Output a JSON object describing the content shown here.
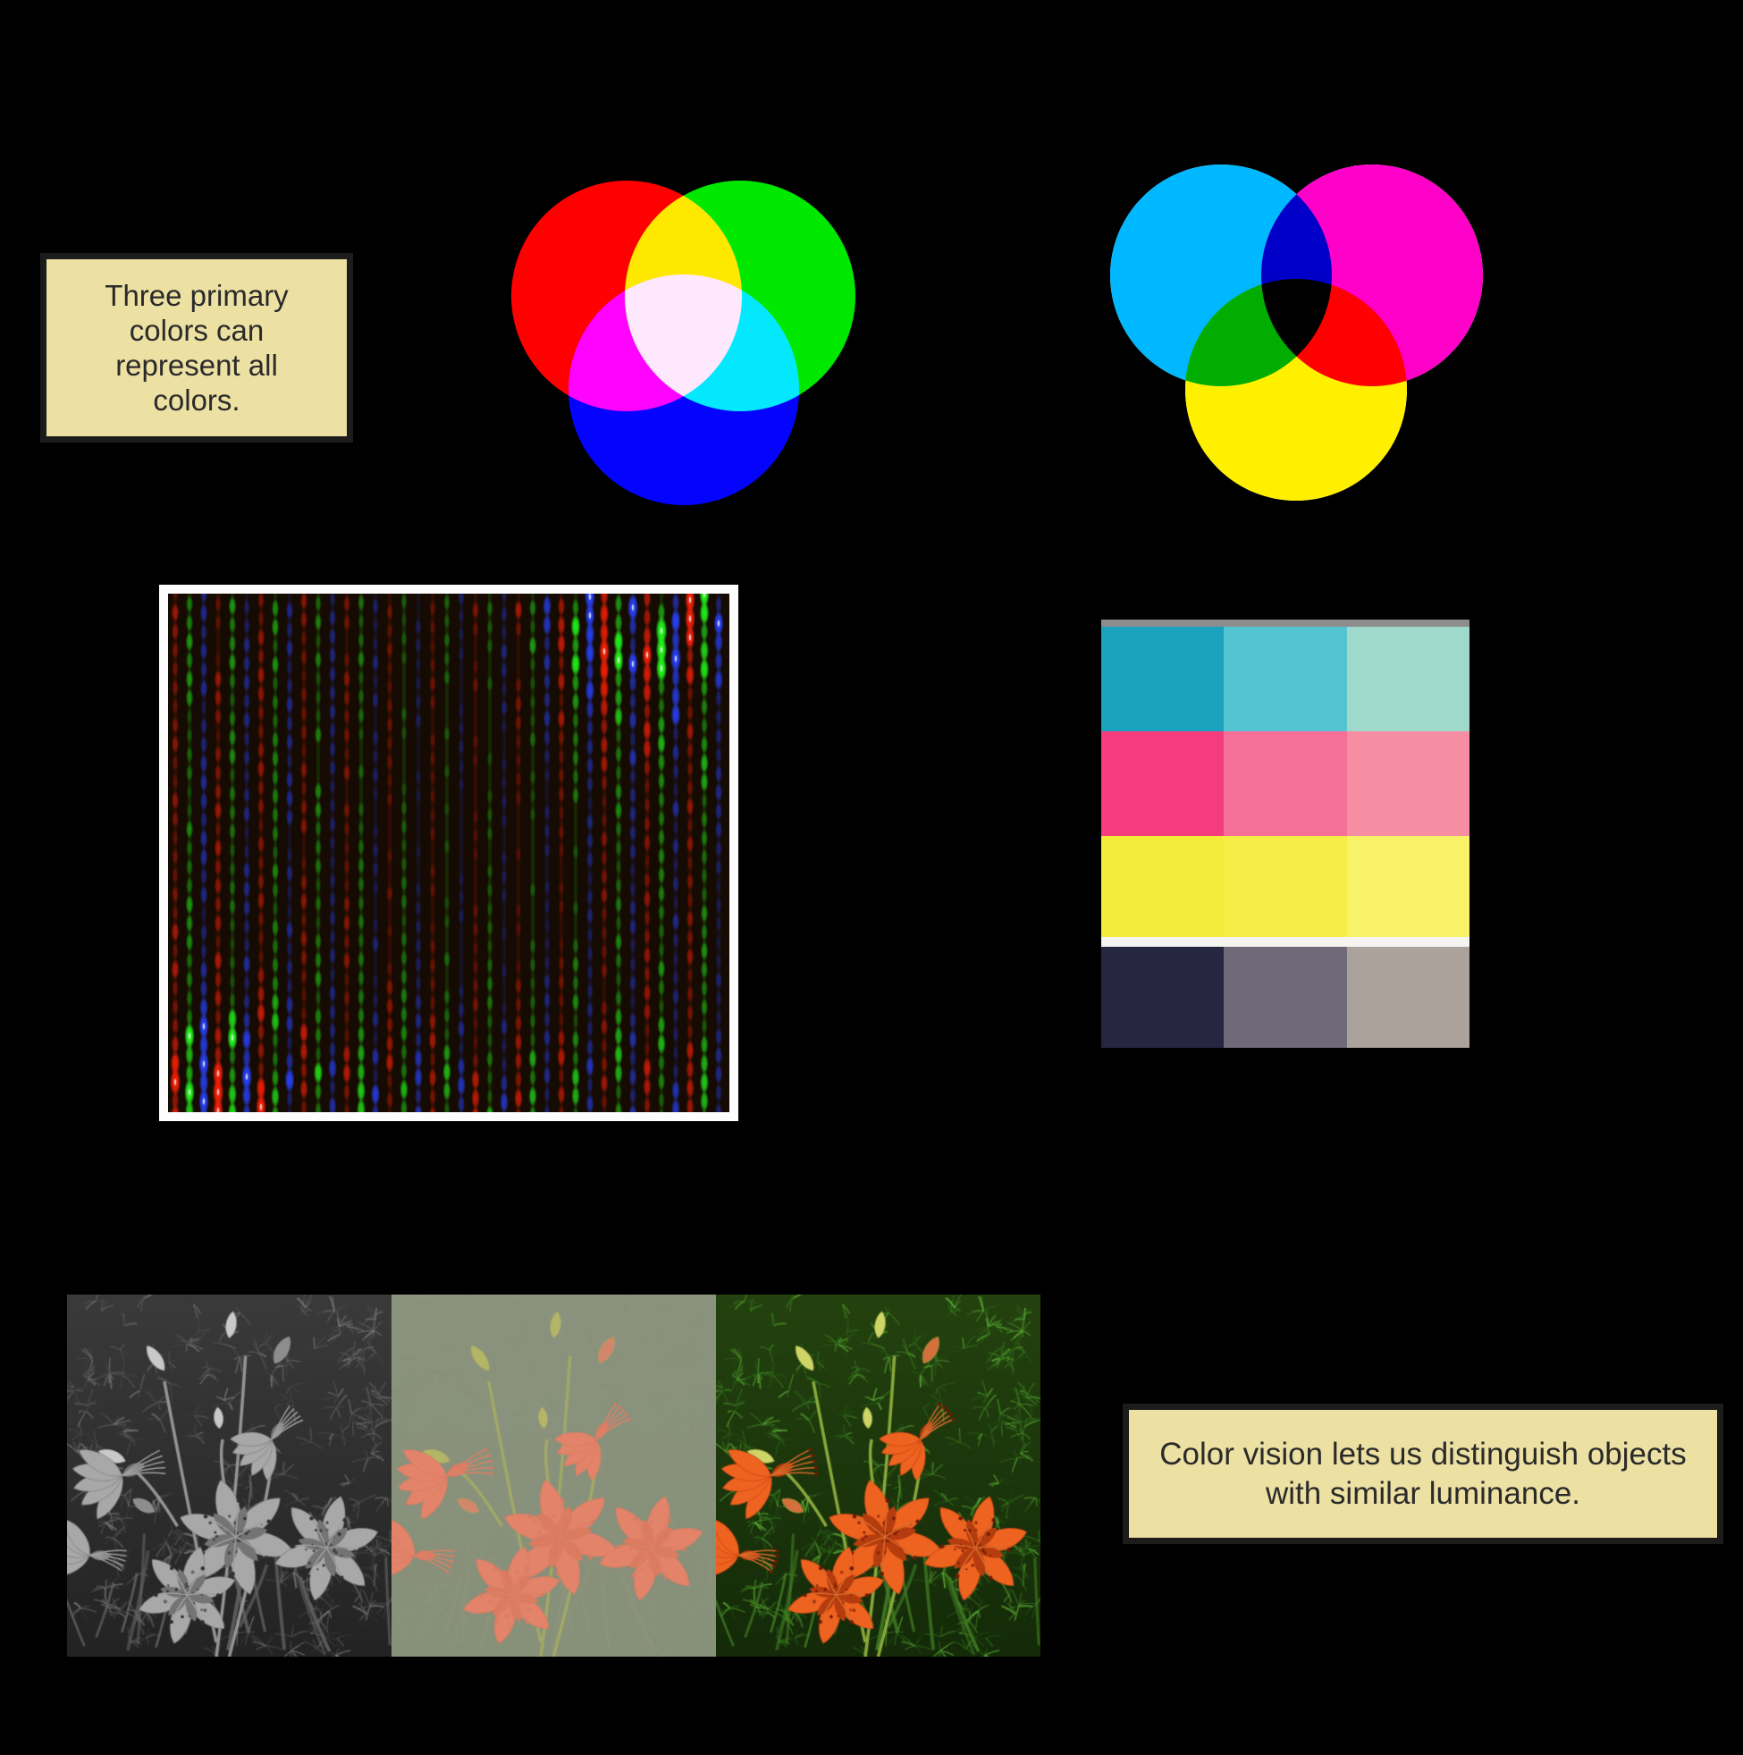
{
  "notes": {
    "primary_colors": {
      "text": "Three primary colors can represent all colors.",
      "bg": "#ece0a2",
      "border": "#1c1c1c",
      "text_color": "#2a2a2a"
    },
    "color_vision": {
      "text": "Color vision lets us distinguish objects with similar luminance.",
      "bg": "#ece0a2",
      "border": "#1c1c1c",
      "text_color": "#2a2a2a"
    }
  },
  "additive_venn": {
    "description": "RGB additive color mixing on black",
    "circles": [
      {
        "name": "red",
        "color": "#fe0000"
      },
      {
        "name": "green",
        "color": "#00e800"
      },
      {
        "name": "blue",
        "color": "#0404fe"
      }
    ],
    "overlaps": {
      "red_green": "#ffff00",
      "red_blue": "#ff00ff",
      "green_blue": "#00ffff",
      "center": "#ffffff"
    }
  },
  "subtractive_venn": {
    "description": "CMY subtractive color mixing",
    "base_color": "#ffffff",
    "circles": [
      {
        "name": "cyan",
        "color": "#00b8ff"
      },
      {
        "name": "magenta",
        "color": "#ff00c8"
      },
      {
        "name": "yellow",
        "color": "#fff000"
      }
    ],
    "overlaps": {
      "cyan_magenta": "#0000c8",
      "cyan_yellow": "#00ad00",
      "magenta_yellow": "#ff0000",
      "center": "#000000"
    }
  },
  "crt_closeup": {
    "description": "close-up photo of CRT screen phosphor stripes",
    "frame_color": "#fdfdfd",
    "background": "#150b02",
    "stripe_colors": [
      "#ff2008",
      "#22ff1c",
      "#2742ff"
    ],
    "col_spacing": 16,
    "blob_spacing": 21,
    "seed": 7
  },
  "print_swatches": {
    "description": "printed CMYK tint patches, three tints per ink",
    "edge_color": "#8d8d8d",
    "separator_color": "#f5f4f0",
    "rows": [
      {
        "name": "cyan",
        "shades": [
          "#1ba3be",
          "#55c4d2",
          "#9ed9cc"
        ]
      },
      {
        "name": "magenta",
        "shades": [
          "#f53c7d",
          "#f66f99",
          "#f78da2"
        ]
      },
      {
        "name": "yellow",
        "shades": [
          "#f4ec3b",
          "#f6ee47",
          "#f8f268"
        ]
      },
      {
        "name": "black",
        "shades": [
          "#262641",
          "#6f6a77",
          "#aba29b"
        ]
      }
    ]
  },
  "flower_panels": {
    "description": "same lily scene: luminance only, isoluminant chroma, full color",
    "seed": 11,
    "panels": [
      {
        "name": "luminance-only",
        "palette": {
          "bg0": "#3a3a3a",
          "bg1": "#232323",
          "needles": [
            "#555555",
            "#6a6a6a",
            "#474747",
            "#7a7a7a",
            "#383838"
          ],
          "blade": "#616161",
          "stem": "#9a9a9a",
          "budY": "#c9c9c9",
          "budO": "#8d8d8d",
          "petal": "#a8a8a8",
          "petalDark": "#747474",
          "spot": "#303030",
          "stamen": "#9f9f9f"
        }
      },
      {
        "name": "isoluminant-chroma",
        "palette": {
          "bg0": "#8b937e",
          "bg1": "#879079",
          "needles": [
            "#8c937e",
            "#8e9580",
            "#879078",
            "#8a937b",
            "#889179"
          ],
          "blade": "#8d947c",
          "stem": "#a3aa66",
          "budY": "#b4b567",
          "budO": "#d2876a",
          "petal": "#e2836a",
          "petalDark": "#db7b60",
          "spot": "#cf7f66",
          "stamen": "#dd8168"
        }
      },
      {
        "name": "full-color",
        "palette": {
          "bg0": "#24420f",
          "bg1": "#142a09",
          "needles": [
            "#35701f",
            "#4c9328",
            "#2a5d18",
            "#5fae36",
            "#1e4710"
          ],
          "blade": "#3f7a22",
          "stem": "#8fae3e",
          "budY": "#cfd468",
          "budO": "#d4703c",
          "petal": "#ef6320",
          "petalDark": "#b53c0e",
          "spot": "#6e1a04",
          "stamen": "#d86a2a"
        }
      }
    ]
  }
}
